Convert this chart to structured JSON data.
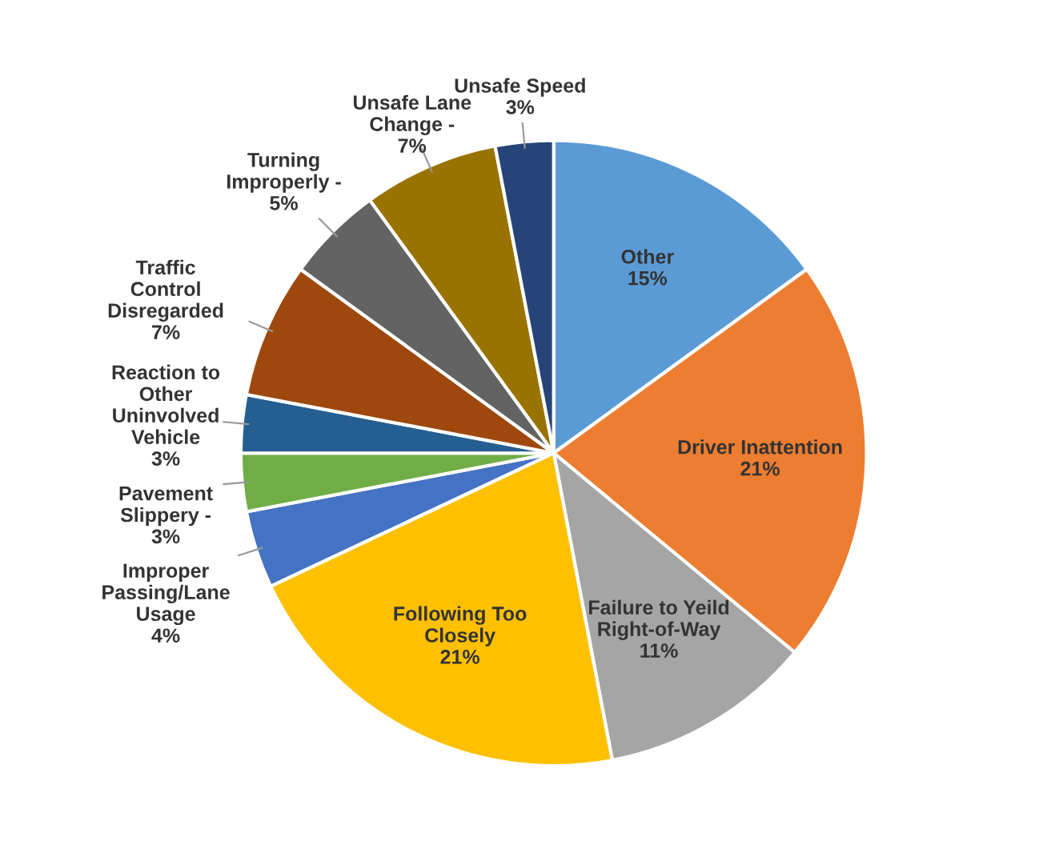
{
  "chart_data": {
    "type": "pie",
    "categories": [
      "Other",
      "Driver Inattention",
      "Failure to Yeild\nRight-of-Way",
      "Following Too\nClosely",
      "Improper\nPassing/Lane\nUsage",
      "Pavement\nSlippery -",
      "Reaction to\nOther\nUninvolved\nVehicle",
      "Traffic\nControl\nDisregarded",
      "Turning\nImproperly -",
      "Unsafe Lane\nChange -",
      "Unsafe Speed"
    ],
    "values": [
      15,
      21,
      11,
      21,
      4,
      3,
      3,
      7,
      5,
      7,
      3
    ],
    "value_labels": [
      "15%",
      "21%",
      "11%",
      "21%",
      "4%",
      "3%",
      "3%",
      "7%",
      "5%",
      "7%",
      "3%"
    ],
    "colors": [
      "#5b9bd5",
      "#ed7d31",
      "#a5a5a5",
      "#ffc000",
      "#4472c4",
      "#70ad47",
      "#255e91",
      "#9e480e",
      "#636363",
      "#997300",
      "#264478"
    ]
  }
}
